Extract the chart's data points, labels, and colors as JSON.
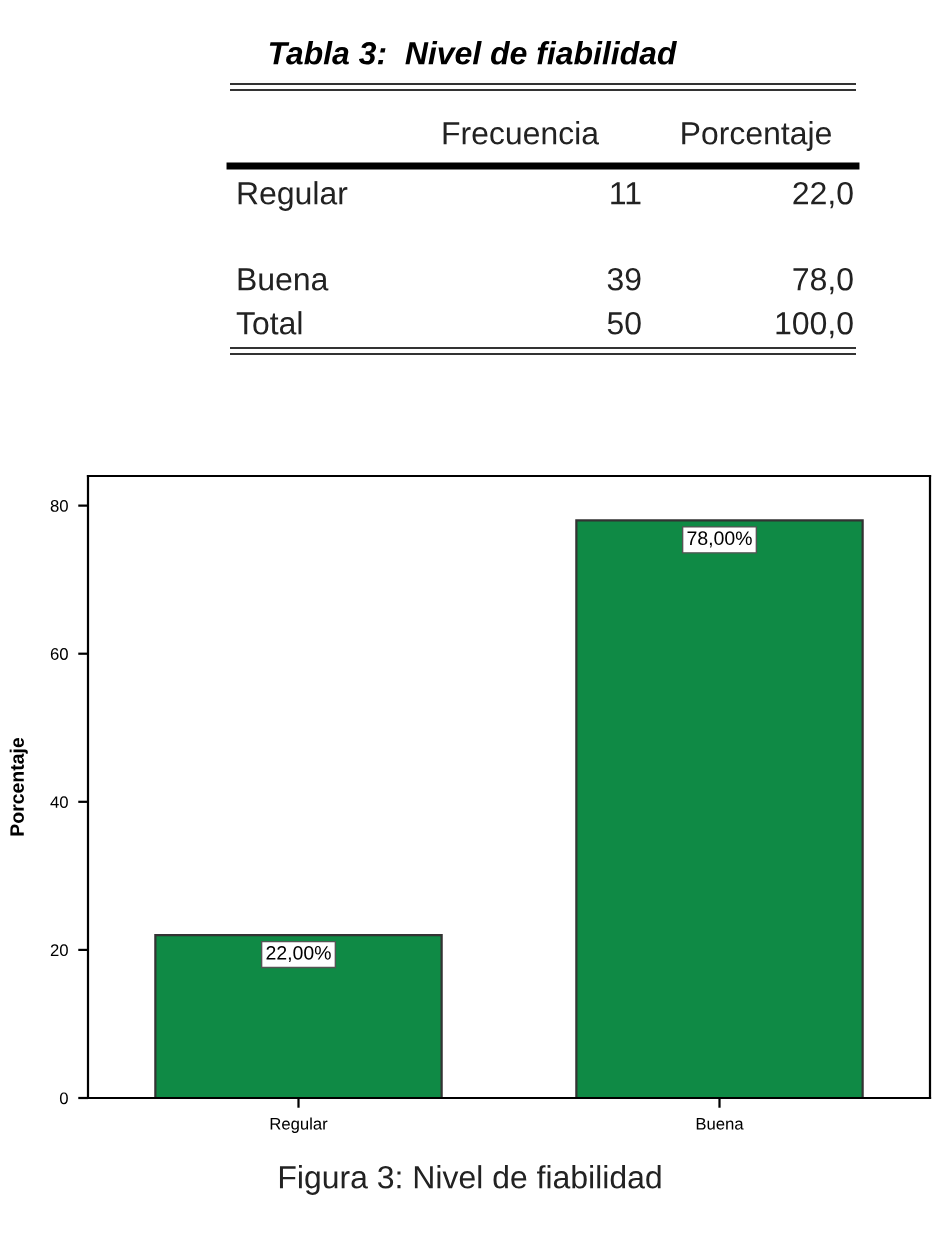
{
  "chart_data": [
    {
      "type": "other",
      "title": "Tabla 3:  Nivel de fiabilidad",
      "annotations": [
        "Frecuencia",
        "Porcentaje",
        "Regular",
        "11",
        "22,0",
        "Buena",
        "39",
        "78,0",
        "Total",
        "50",
        "100,0"
      ]
    },
    {
      "type": "bar",
      "categories": [
        "Regular",
        "Buena"
      ],
      "values": [
        22,
        78
      ],
      "color": "#0f8a45",
      "value_labels": [
        "22,00%",
        "78,00%"
      ],
      "ylabel": "Porcentaje",
      "ylim": [
        0,
        84
      ],
      "yticks": [
        0,
        20,
        40,
        60,
        80
      ],
      "grid": false,
      "legend": false,
      "annotations": [
        "Figura 3: Nivel de fiabilidad"
      ]
    }
  ]
}
